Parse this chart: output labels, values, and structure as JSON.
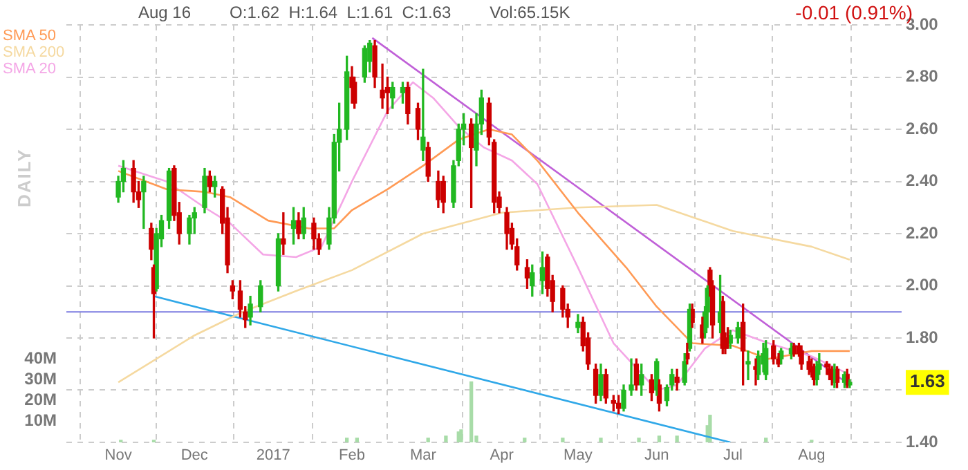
{
  "chart_data": {
    "type": "candlestick",
    "subtitle": "-0.01 (0.91%)",
    "annotations": [
      "Aug 16",
      "O:1.62  H:1.64  L:1.61  C:1.63",
      "Vol:65.15K",
      "DAILY",
      "1.63"
    ],
    "xlim": [
      "2016-10-28",
      "2017-08-20"
    ],
    "xticks": [
      {
        "value": "2016-11-01",
        "label": "Nov"
      },
      {
        "value": "2016-12-01",
        "label": "Dec"
      },
      {
        "value": "2017-01-01",
        "label": "2017"
      },
      {
        "value": "2017-02-01",
        "label": "Feb"
      },
      {
        "value": "2017-03-01",
        "label": "Mar"
      },
      {
        "value": "2017-04-01",
        "label": "Apr"
      },
      {
        "value": "2017-05-01",
        "label": "May"
      },
      {
        "value": "2017-06-01",
        "label": "Jun"
      },
      {
        "value": "2017-07-01",
        "label": "Jul"
      },
      {
        "value": "2017-08-01",
        "label": "Aug"
      }
    ],
    "ylim": [
      1.4,
      3.0
    ],
    "yticks": [
      {
        "value": 1.4,
        "label": "1.40"
      },
      {
        "value": 1.6,
        "label": null
      },
      {
        "value": 1.8,
        "label": "1.80"
      },
      {
        "value": 2.0,
        "label": "2.00"
      },
      {
        "value": 2.2,
        "label": "2.20"
      },
      {
        "value": 2.4,
        "label": "2.40"
      },
      {
        "value": 2.6,
        "label": "2.60"
      },
      {
        "value": 2.8,
        "label": "2.80"
      },
      {
        "value": 3.0,
        "label": "3.00"
      }
    ],
    "y2lim": [
      0,
      200
    ],
    "y2ticks": [
      {
        "value": 10,
        "label": "10M"
      },
      {
        "value": 20,
        "label": "20M"
      },
      {
        "value": 30,
        "label": "30M"
      },
      {
        "value": 40,
        "label": "40M"
      }
    ],
    "grid": true,
    "legend": "top left",
    "marker": "none",
    "ref_lines": [
      {
        "axis": "y",
        "value": 1.9,
        "color": "#7b7be0"
      }
    ],
    "x": [
      "2016-11-01",
      "2016-11-03",
      "2016-11-07",
      "2016-11-09",
      "2016-11-11",
      "2016-11-14",
      "2016-11-15",
      "2016-11-16",
      "2016-11-18",
      "2016-11-21",
      "2016-11-23",
      "2016-11-25",
      "2016-11-29",
      "2016-12-01",
      "2016-12-05",
      "2016-12-07",
      "2016-12-09",
      "2016-12-12",
      "2016-12-14",
      "2016-12-16",
      "2016-12-19",
      "2016-12-21",
      "2016-12-23",
      "2016-12-27",
      "2017-01-03",
      "2017-01-05",
      "2017-01-09",
      "2017-01-11",
      "2017-01-13",
      "2017-01-17",
      "2017-01-19",
      "2017-01-23",
      "2017-01-25",
      "2017-01-27",
      "2017-01-30",
      "2017-02-01",
      "2017-02-02",
      "2017-02-06",
      "2017-02-08",
      "2017-02-10",
      "2017-02-13",
      "2017-02-15",
      "2017-02-17",
      "2017-02-21",
      "2017-02-23",
      "2017-02-27",
      "2017-03-01",
      "2017-03-03",
      "2017-03-07",
      "2017-03-09",
      "2017-03-13",
      "2017-03-15",
      "2017-03-17",
      "2017-03-20",
      "2017-03-22",
      "2017-03-24",
      "2017-03-27",
      "2017-03-29",
      "2017-03-31",
      "2017-04-03",
      "2017-04-05",
      "2017-04-07",
      "2017-04-11",
      "2017-04-13",
      "2017-04-17",
      "2017-04-19",
      "2017-04-21",
      "2017-04-25",
      "2017-04-27",
      "2017-05-01",
      "2017-05-03",
      "2017-05-05",
      "2017-05-08",
      "2017-05-10",
      "2017-05-12",
      "2017-05-15",
      "2017-05-17",
      "2017-05-19",
      "2017-05-22",
      "2017-05-24",
      "2017-05-26",
      "2017-05-30",
      "2017-06-01",
      "2017-06-02",
      "2017-06-05",
      "2017-06-07",
      "2017-06-09",
      "2017-06-12",
      "2017-06-13",
      "2017-06-14",
      "2017-06-15",
      "2017-06-19",
      "2017-06-20",
      "2017-06-21",
      "2017-06-22",
      "2017-06-23",
      "2017-06-26",
      "2017-06-27",
      "2017-06-28",
      "2017-06-29",
      "2017-06-30",
      "2017-07-03",
      "2017-07-05",
      "2017-07-07",
      "2017-07-10",
      "2017-07-11",
      "2017-07-13",
      "2017-07-14",
      "2017-07-17",
      "2017-07-19",
      "2017-07-20",
      "2017-07-24",
      "2017-07-25",
      "2017-07-27",
      "2017-07-28",
      "2017-07-31",
      "2017-08-01",
      "2017-08-02",
      "2017-08-03",
      "2017-08-04",
      "2017-08-07",
      "2017-08-08",
      "2017-08-09",
      "2017-08-10",
      "2017-08-11",
      "2017-08-14",
      "2017-08-15",
      "2017-08-16"
    ],
    "ohlc": [
      [
        2.34,
        2.42,
        2.32,
        2.4
      ],
      [
        2.4,
        2.48,
        2.36,
        2.45
      ],
      [
        2.45,
        2.48,
        2.32,
        2.36
      ],
      [
        2.36,
        2.4,
        2.3,
        2.33
      ],
      [
        2.36,
        2.42,
        2.22,
        2.4
      ],
      [
        2.22,
        2.24,
        2.1,
        2.14
      ],
      [
        2.07,
        2.08,
        1.8,
        1.97
      ],
      [
        1.99,
        2.22,
        1.98,
        2.2
      ],
      [
        2.18,
        2.27,
        2.15,
        2.25
      ],
      [
        2.25,
        2.45,
        2.22,
        2.44
      ],
      [
        2.45,
        2.46,
        2.25,
        2.27
      ],
      [
        2.28,
        2.32,
        2.16,
        2.2
      ],
      [
        2.2,
        2.27,
        2.16,
        2.26
      ],
      [
        2.26,
        2.3,
        2.2,
        2.28
      ],
      [
        2.3,
        2.45,
        2.28,
        2.42
      ],
      [
        2.42,
        2.44,
        2.36,
        2.38
      ],
      [
        2.38,
        2.42,
        2.34,
        2.4
      ],
      [
        2.37,
        2.38,
        2.2,
        2.24
      ],
      [
        2.26,
        2.3,
        2.05,
        2.08
      ],
      [
        2.0,
        2.02,
        1.95,
        1.98
      ],
      [
        1.98,
        2.02,
        1.88,
        1.91
      ],
      [
        1.9,
        1.92,
        1.84,
        1.87
      ],
      [
        1.88,
        1.96,
        1.85,
        1.93
      ],
      [
        1.92,
        2.02,
        1.9,
        2.0
      ],
      [
        2.0,
        2.2,
        1.98,
        2.18
      ],
      [
        2.18,
        2.28,
        2.12,
        2.16
      ],
      [
        2.22,
        2.3,
        2.16,
        2.25
      ],
      [
        2.25,
        2.28,
        2.18,
        2.2
      ],
      [
        2.2,
        2.3,
        2.18,
        2.26
      ],
      [
        2.24,
        2.26,
        2.14,
        2.18
      ],
      [
        2.18,
        2.2,
        2.12,
        2.14
      ],
      [
        2.16,
        2.3,
        2.14,
        2.26
      ],
      [
        2.26,
        2.58,
        2.24,
        2.55
      ],
      [
        2.55,
        2.7,
        2.44,
        2.6
      ],
      [
        2.6,
        2.88,
        2.56,
        2.82
      ],
      [
        2.8,
        2.84,
        2.7,
        2.76
      ],
      [
        2.78,
        2.8,
        2.68,
        2.7
      ],
      [
        2.8,
        2.92,
        2.78,
        2.91
      ],
      [
        2.86,
        2.94,
        2.82,
        2.93
      ],
      [
        2.92,
        2.94,
        2.76,
        2.8
      ],
      [
        2.75,
        2.85,
        2.68,
        2.72
      ],
      [
        2.76,
        2.8,
        2.66,
        2.74
      ],
      [
        2.72,
        2.78,
        2.68,
        2.76
      ],
      [
        2.74,
        2.78,
        2.7,
        2.76
      ],
      [
        2.76,
        2.78,
        2.62,
        2.66
      ],
      [
        2.68,
        2.7,
        2.56,
        2.6
      ],
      [
        2.52,
        2.83,
        2.48,
        2.57
      ],
      [
        2.53,
        2.55,
        2.4,
        2.42
      ],
      [
        2.4,
        2.44,
        2.3,
        2.33
      ],
      [
        2.4,
        2.42,
        2.28,
        2.32
      ],
      [
        2.32,
        2.48,
        2.3,
        2.46
      ],
      [
        2.48,
        2.62,
        2.46,
        2.6
      ],
      [
        2.6,
        2.66,
        2.54,
        2.62
      ],
      [
        2.62,
        2.64,
        2.3,
        2.53
      ],
      [
        2.52,
        2.66,
        2.46,
        2.62
      ],
      [
        2.62,
        2.75,
        2.58,
        2.72
      ],
      [
        2.7,
        2.72,
        2.54,
        2.57
      ],
      [
        2.55,
        2.56,
        2.28,
        2.32
      ],
      [
        2.34,
        2.36,
        2.28,
        2.3
      ],
      [
        2.28,
        2.3,
        2.14,
        2.2
      ],
      [
        2.22,
        2.24,
        2.14,
        2.16
      ],
      [
        2.15,
        2.18,
        2.06,
        2.08
      ],
      [
        2.07,
        2.1,
        1.99,
        2.03
      ],
      [
        2.0,
        2.08,
        1.96,
        2.05
      ],
      [
        2.02,
        2.13,
        1.97,
        2.07
      ],
      [
        2.11,
        2.12,
        1.96,
        1.99
      ],
      [
        2.02,
        2.04,
        1.9,
        1.94
      ],
      [
        1.99,
        2.0,
        1.88,
        1.91
      ],
      [
        1.91,
        1.93,
        1.84,
        1.88
      ],
      [
        1.84,
        1.89,
        1.82,
        1.86
      ],
      [
        1.86,
        1.88,
        1.75,
        1.77
      ],
      [
        1.8,
        1.82,
        1.68,
        1.7
      ],
      [
        1.68,
        1.7,
        1.55,
        1.58
      ],
      [
        1.58,
        1.7,
        1.56,
        1.66
      ],
      [
        1.66,
        1.68,
        1.55,
        1.57
      ],
      [
        1.56,
        1.58,
        1.52,
        1.55
      ],
      [
        1.55,
        1.58,
        1.51,
        1.53
      ],
      [
        1.53,
        1.62,
        1.52,
        1.6
      ],
      [
        1.6,
        1.72,
        1.58,
        1.62
      ],
      [
        1.7,
        1.72,
        1.6,
        1.62
      ],
      [
        1.62,
        1.7,
        1.58,
        1.66
      ],
      [
        1.64,
        1.66,
        1.56,
        1.59
      ],
      [
        1.6,
        1.72,
        1.58,
        1.71
      ],
      [
        1.62,
        1.64,
        1.52,
        1.55
      ],
      [
        1.56,
        1.62,
        1.54,
        1.61
      ],
      [
        1.62,
        1.68,
        1.6,
        1.66
      ],
      [
        1.65,
        1.68,
        1.6,
        1.63
      ],
      [
        1.63,
        1.74,
        1.62,
        1.71
      ],
      [
        1.74,
        1.78,
        1.7,
        1.72
      ],
      [
        1.76,
        1.93,
        1.75,
        1.91
      ],
      [
        1.91,
        1.93,
        1.84,
        1.86
      ],
      [
        1.85,
        1.88,
        1.78,
        1.8
      ],
      [
        1.82,
        1.92,
        1.8,
        1.9
      ],
      [
        1.9,
        2.0,
        1.84,
        1.99
      ],
      [
        2.06,
        2.07,
        1.96,
        1.99
      ],
      [
        2.0,
        2.02,
        1.8,
        1.85
      ],
      [
        1.86,
        2.04,
        1.82,
        1.9
      ],
      [
        1.94,
        1.96,
        1.74,
        1.76
      ],
      [
        1.8,
        1.82,
        1.74,
        1.76
      ],
      [
        1.8,
        1.84,
        1.76,
        1.78
      ],
      [
        1.78,
        1.83,
        1.76,
        1.81
      ],
      [
        1.8,
        1.86,
        1.78,
        1.84
      ],
      [
        1.86,
        1.93,
        1.62,
        1.75
      ],
      [
        1.7,
        1.75,
        1.64,
        1.71
      ],
      [
        1.69,
        1.72,
        1.62,
        1.68
      ],
      [
        1.66,
        1.75,
        1.64,
        1.73
      ],
      [
        1.7,
        1.78,
        1.67,
        1.74
      ],
      [
        1.66,
        1.79,
        1.64,
        1.76
      ],
      [
        1.77,
        1.79,
        1.7,
        1.72
      ],
      [
        1.72,
        1.74,
        1.69,
        1.7
      ],
      [
        1.72,
        1.76,
        1.7,
        1.75
      ],
      [
        1.74,
        1.78,
        1.72,
        1.76
      ],
      [
        1.77,
        1.78,
        1.73,
        1.74
      ],
      [
        1.77,
        1.78,
        1.73,
        1.74
      ],
      [
        1.75,
        1.77,
        1.68,
        1.7
      ],
      [
        1.71,
        1.73,
        1.66,
        1.68
      ],
      [
        1.68,
        1.72,
        1.65,
        1.67
      ],
      [
        1.69,
        1.7,
        1.62,
        1.64
      ],
      [
        1.64,
        1.71,
        1.62,
        1.69
      ],
      [
        1.68,
        1.74,
        1.66,
        1.7
      ],
      [
        1.7,
        1.71,
        1.66,
        1.69
      ],
      [
        1.68,
        1.7,
        1.64,
        1.66
      ],
      [
        1.68,
        1.69,
        1.62,
        1.64
      ],
      [
        1.63,
        1.7,
        1.61,
        1.68
      ],
      [
        1.68,
        1.69,
        1.61,
        1.63
      ],
      [
        1.63,
        1.67,
        1.61,
        1.66
      ],
      [
        1.66,
        1.68,
        1.61,
        1.62
      ],
      [
        1.62,
        1.64,
        1.61,
        1.63
      ]
    ],
    "series": [
      {
        "name": "SMA 50",
        "type": "line",
        "color": "#ff9a55",
        "x": [
          "2016-11-01",
          "2016-11-20",
          "2016-12-05",
          "2016-12-15",
          "2016-12-30",
          "2017-01-15",
          "2017-01-25",
          "2017-02-01",
          "2017-02-15",
          "2017-03-01",
          "2017-03-15",
          "2017-03-27",
          "2017-04-05",
          "2017-04-15",
          "2017-05-01",
          "2017-05-20",
          "2017-06-01",
          "2017-06-15",
          "2017-07-01",
          "2017-07-15",
          "2017-08-01",
          "2017-08-16"
        ],
        "values": [
          2.44,
          2.37,
          2.36,
          2.34,
          2.25,
          2.22,
          2.22,
          2.29,
          2.37,
          2.46,
          2.56,
          2.6,
          2.58,
          2.48,
          2.28,
          2.07,
          1.92,
          1.78,
          1.77,
          1.72,
          1.75,
          1.75
        ]
      },
      {
        "name": "SMA 200",
        "type": "line",
        "color": "#f5d9a0",
        "x": [
          "2016-11-01",
          "2016-12-01",
          "2016-12-20",
          "2017-01-10",
          "2017-02-01",
          "2017-03-01",
          "2017-04-01",
          "2017-05-01",
          "2017-06-01",
          "2017-07-01",
          "2017-08-01",
          "2017-08-16"
        ],
        "values": [
          1.63,
          1.81,
          1.9,
          1.98,
          2.06,
          2.2,
          2.28,
          2.3,
          2.31,
          2.21,
          2.15,
          2.1
        ]
      },
      {
        "name": "SMA 20",
        "type": "line",
        "color": "#f4a6e6",
        "x": [
          "2016-11-01",
          "2016-11-20",
          "2016-12-05",
          "2016-12-15",
          "2016-12-28",
          "2017-01-10",
          "2017-01-20",
          "2017-02-01",
          "2017-02-15",
          "2017-02-25",
          "2017-03-05",
          "2017-03-15",
          "2017-03-25",
          "2017-04-05",
          "2017-04-15",
          "2017-05-01",
          "2017-05-15",
          "2017-06-01",
          "2017-06-09",
          "2017-06-20",
          "2017-07-01",
          "2017-07-15",
          "2017-08-01",
          "2017-08-16"
        ],
        "values": [
          2.46,
          2.4,
          2.3,
          2.24,
          2.12,
          2.11,
          2.15,
          2.4,
          2.67,
          2.78,
          2.72,
          2.61,
          2.53,
          2.48,
          2.39,
          2.07,
          1.78,
          1.6,
          1.62,
          1.76,
          1.83,
          1.78,
          1.73,
          1.66
        ]
      },
      {
        "type": "line",
        "color": "#c060d8",
        "x": [
          "2017-02-09",
          "2017-08-16"
        ],
        "values": [
          2.95,
          1.62
        ]
      },
      {
        "type": "line",
        "color": "#30a8e8",
        "x": [
          "2016-11-15",
          "2017-06-30"
        ],
        "values": [
          1.96,
          1.4
        ]
      },
      {
        "type": "bar",
        "axis": "y2",
        "color": "#a8dca8",
        "x": [
          "2016-11-02",
          "2016-11-15",
          "2017-01-30",
          "2017-02-03",
          "2017-03-03",
          "2017-03-10",
          "2017-03-15",
          "2017-03-16",
          "2017-03-20",
          "2017-03-22",
          "2017-04-10",
          "2017-04-25",
          "2017-05-10",
          "2017-05-25",
          "2017-06-02",
          "2017-06-09",
          "2017-06-21",
          "2017-06-22",
          "2017-07-14",
          "2017-08-01"
        ],
        "values": [
          1,
          1,
          2,
          2,
          2,
          3,
          5,
          6,
          29,
          3,
          2,
          2,
          2,
          2,
          3,
          3,
          8,
          13,
          2,
          1
        ]
      }
    ]
  }
}
